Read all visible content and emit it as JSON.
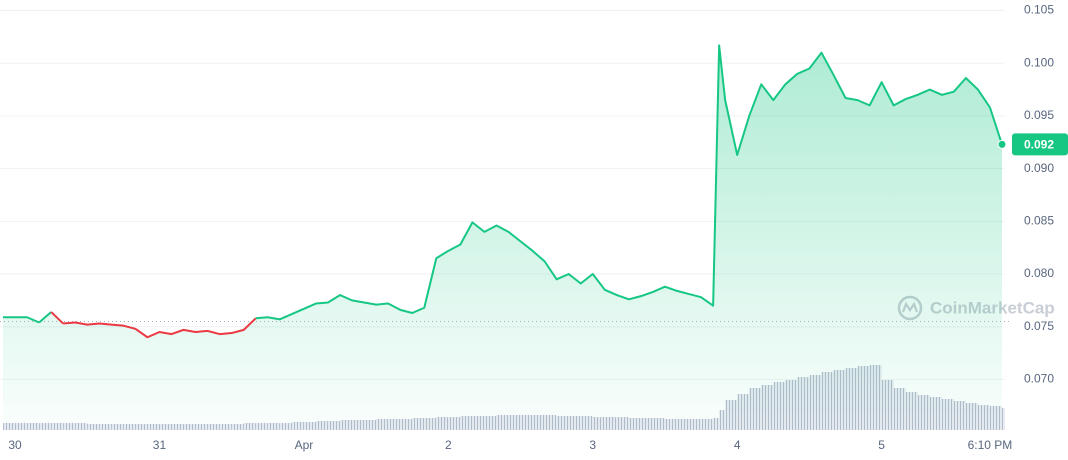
{
  "chart_data": {
    "type": "line",
    "x": [
      -2,
      0,
      2,
      4,
      6,
      8,
      10,
      12,
      14,
      16,
      18,
      20,
      22,
      24,
      26,
      28,
      30,
      32,
      34,
      36,
      38,
      40,
      42,
      44,
      46,
      48,
      50,
      52,
      54,
      56,
      58,
      60,
      62,
      64,
      66,
      68,
      70,
      72,
      74,
      76,
      78,
      80,
      82,
      84,
      86,
      88,
      90,
      92,
      94,
      96,
      98,
      100,
      102,
      104,
      106,
      108,
      110,
      112,
      114,
      116,
      117,
      118,
      120,
      122,
      124,
      126,
      128,
      130,
      132,
      134,
      136,
      138,
      140,
      142,
      144,
      146,
      148,
      150,
      152,
      154,
      156,
      158,
      160,
      162,
      164
    ],
    "values": [
      0.0759,
      0.0759,
      0.0759,
      0.0754,
      0.0764,
      0.0753,
      0.0754,
      0.0752,
      0.0753,
      0.0752,
      0.0751,
      0.0748,
      0.074,
      0.0745,
      0.0743,
      0.0747,
      0.0745,
      0.0746,
      0.0743,
      0.0744,
      0.0747,
      0.0758,
      0.0759,
      0.0757,
      0.0762,
      0.0767,
      0.0772,
      0.0773,
      0.078,
      0.0775,
      0.0773,
      0.0771,
      0.0772,
      0.0766,
      0.0763,
      0.0768,
      0.0815,
      0.0822,
      0.0828,
      0.0849,
      0.084,
      0.0846,
      0.084,
      0.0831,
      0.0822,
      0.0812,
      0.0795,
      0.08,
      0.0791,
      0.08,
      0.0785,
      0.078,
      0.0776,
      0.0779,
      0.0783,
      0.0788,
      0.0784,
      0.0781,
      0.0778,
      0.077,
      0.1017,
      0.0965,
      0.0913,
      0.095,
      0.098,
      0.0965,
      0.098,
      0.099,
      0.0995,
      0.101,
      0.0989,
      0.0967,
      0.0965,
      0.096,
      0.0982,
      0.096,
      0.0966,
      0.097,
      0.0975,
      0.097,
      0.0973,
      0.0986,
      0.0975,
      0.0958,
      0.0923
    ],
    "baseline": 0.0755,
    "up_color": "#16c784",
    "down_color": "#ea3943",
    "current_label": "0.092",
    "xlim": [
      -2.5,
      164.5
    ],
    "xticks": [
      {
        "value": 0,
        "label": "30"
      },
      {
        "value": 24,
        "label": "31"
      },
      {
        "value": 48,
        "label": "Apr"
      },
      {
        "value": 72,
        "label": "2"
      },
      {
        "value": 96,
        "label": "3"
      },
      {
        "value": 120,
        "label": "4"
      },
      {
        "value": 144,
        "label": "5"
      },
      {
        "value": 162,
        "label": "6:10 PM"
      }
    ],
    "ylim": [
      0.0652,
      0.106
    ],
    "yticks": [
      {
        "value": 0.07,
        "label": "0.070"
      },
      0.075,
      {
        "value": 0.08,
        "label": "0.080"
      },
      0.085,
      {
        "value": 0.09,
        "label": "0.090"
      },
      0.095,
      {
        "value": 0.1,
        "label": "0.100"
      },
      0.105
    ],
    "grid": true,
    "volume": {
      "color": "#a6b0c3",
      "ylim": [
        0,
        100
      ],
      "values": [
        7,
        7,
        7,
        7,
        7,
        7,
        7,
        6,
        6,
        6,
        6,
        6,
        6,
        6,
        6,
        6,
        6,
        6,
        6,
        6,
        7,
        7,
        7,
        7,
        8,
        8,
        9,
        9,
        10,
        10,
        10,
        11,
        11,
        11,
        12,
        12,
        13,
        13,
        14,
        14,
        14,
        15,
        15,
        15,
        15,
        15,
        14,
        14,
        14,
        13,
        13,
        13,
        12,
        12,
        12,
        11,
        11,
        11,
        11,
        12,
        20,
        30,
        36,
        42,
        45,
        48,
        50,
        53,
        55,
        58,
        60,
        62,
        64,
        65,
        50,
        42,
        38,
        35,
        33,
        31,
        29,
        27,
        25,
        24,
        22
      ]
    },
    "watermark": "CoinMarketCap"
  }
}
